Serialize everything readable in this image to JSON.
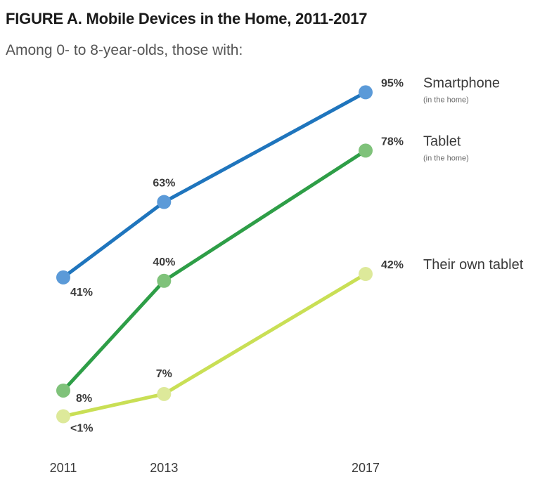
{
  "chart_data": {
    "type": "line",
    "title": "FIGURE A. Mobile Devices in the Home, 2011-2017",
    "subtitle": "Among 0- to 8-year-olds, those with:",
    "categories": [
      "2011",
      "2013",
      "2017"
    ],
    "series": [
      {
        "name": "Smartphone",
        "note": "(in the home)",
        "color": "#1f75bd",
        "marker_color": "#5b9ad8",
        "values": [
          41,
          63,
          95
        ],
        "labels": [
          "41%",
          "63%",
          "95%"
        ]
      },
      {
        "name": "Tablet",
        "note": "(in the home)",
        "color": "#2e9e47",
        "marker_color": "#7fc27a",
        "values": [
          8,
          40,
          78
        ],
        "labels": [
          "8%",
          "40%",
          "78%"
        ]
      },
      {
        "name": "Their own tablet",
        "note": "",
        "color": "#c9df55",
        "marker_color": "#dde99a",
        "values": [
          0.5,
          7,
          42
        ],
        "labels": [
          "<1%",
          "7%",
          "42%"
        ]
      }
    ],
    "ylim": [
      0,
      100
    ],
    "grid": false,
    "legend": "right"
  }
}
